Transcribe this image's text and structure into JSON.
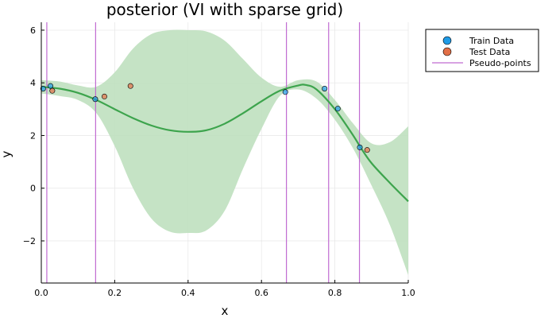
{
  "chart_data": {
    "type": "line",
    "title": "posterior (VI with sparse grid)",
    "xlabel": "x",
    "ylabel": "y",
    "xlim": [
      0.0,
      1.0
    ],
    "ylim": [
      -3.6,
      6.3
    ],
    "xticks": [
      0.0,
      0.2,
      0.4,
      0.6,
      0.8,
      1.0
    ],
    "xtick_labels": [
      "0.0",
      "0.2",
      "0.4",
      "0.6",
      "0.8",
      "1.0"
    ],
    "yticks": [
      -2,
      0,
      2,
      4,
      6
    ],
    "ytick_labels": [
      "−2",
      "0",
      "2",
      "4",
      "6"
    ],
    "grid": true,
    "legend_position": "top-right outside",
    "legend": [
      "Train Data",
      "Test Data",
      "Pseudo-points"
    ],
    "colors": {
      "train": "#1f9be6",
      "test": "#e26f46",
      "mean": "#3da44d",
      "band": "#bfe0bf",
      "pseudo": "#c06bd1"
    },
    "posterior_mean": {
      "x": [
        0.0,
        0.05,
        0.1,
        0.15,
        0.2,
        0.25,
        0.3,
        0.35,
        0.4,
        0.45,
        0.5,
        0.55,
        0.6,
        0.65,
        0.7,
        0.72,
        0.75,
        0.8,
        0.85,
        0.87,
        0.9,
        0.95,
        1.0
      ],
      "y": [
        3.85,
        3.78,
        3.62,
        3.35,
        3.0,
        2.66,
        2.38,
        2.2,
        2.14,
        2.2,
        2.45,
        2.85,
        3.3,
        3.7,
        3.9,
        3.92,
        3.75,
        3.0,
        2.0,
        1.55,
        0.95,
        0.2,
        -0.5
      ]
    },
    "posterior_band": {
      "x": [
        0.0,
        0.05,
        0.1,
        0.15,
        0.2,
        0.25,
        0.3,
        0.35,
        0.4,
        0.45,
        0.5,
        0.55,
        0.6,
        0.65,
        0.7,
        0.75,
        0.8,
        0.85,
        0.9,
        0.95,
        1.0
      ],
      "upper": [
        4.1,
        4.05,
        3.9,
        3.85,
        4.4,
        5.3,
        5.85,
        6.0,
        6.0,
        5.95,
        5.6,
        4.9,
        4.2,
        3.85,
        4.1,
        4.05,
        3.35,
        2.45,
        1.7,
        1.75,
        2.35
      ],
      "lower": [
        3.6,
        3.5,
        3.35,
        2.85,
        1.6,
        0.0,
        -1.15,
        -1.65,
        -1.7,
        -1.6,
        -0.85,
        0.75,
        2.25,
        3.5,
        3.75,
        3.4,
        2.6,
        1.5,
        0.1,
        -1.4,
        -3.3
      ]
    },
    "train_data": {
      "x": [
        0.005,
        0.025,
        0.147,
        0.665,
        0.772,
        0.808,
        0.868
      ],
      "y": [
        3.78,
        3.88,
        3.38,
        3.65,
        3.78,
        3.02,
        1.55
      ]
    },
    "test_data": {
      "x": [
        0.03,
        0.172,
        0.243,
        0.888
      ],
      "y": [
        3.7,
        3.48,
        3.88,
        1.45
      ]
    },
    "pseudo_points": [
      0.015,
      0.148,
      0.668,
      0.783,
      0.867
    ]
  }
}
